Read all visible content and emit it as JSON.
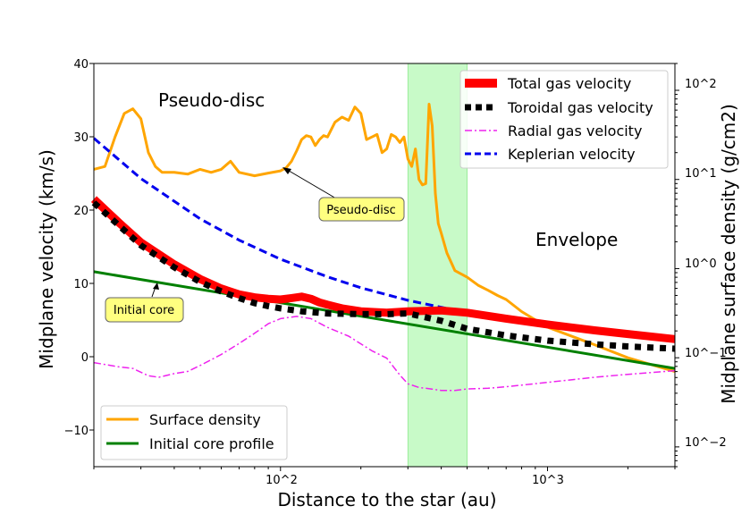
{
  "chart_data": {
    "type": "line",
    "xlabel": "Distance to the star (au)",
    "ylabel": "Midplane velocity (km/s)",
    "ylabel_right": "Midplane surface density (g/cm2)",
    "x_scale": "log",
    "xlim": [
      20,
      3000
    ],
    "ylim": [
      -15,
      40
    ],
    "y2_scale": "log",
    "y2lim": [
      0.006,
      200
    ],
    "x_ticks": [
      "10^2",
      "10^3"
    ],
    "y_ticks": [
      "40",
      "30",
      "20",
      "10",
      "0",
      "−10"
    ],
    "y2_ticks": [
      "10^2",
      "10^1",
      "10^0",
      "10^−1",
      "10^−2"
    ],
    "shaded_region": {
      "x": [
        300,
        500
      ],
      "color": "#c8fac8"
    },
    "region_labels": {
      "pseudo_disc": "Pseudo-disc",
      "envelope": "Envelope"
    },
    "annotations": [
      {
        "text": "Pseudo-disc",
        "target_x": 95,
        "target_y": 25.8,
        "label_x": 240,
        "label_y": 20.5
      },
      {
        "text": "Initial core",
        "target_x": 35,
        "target_y": 10.0,
        "label_x": 33,
        "label_y": 6.2
      }
    ],
    "legend_top": {
      "position": "top-right",
      "entries": [
        {
          "label": "Total gas velocity",
          "color": "#ff0000",
          "style": "thick"
        },
        {
          "label": "Toroidal gas velocity",
          "color": "#000000",
          "style": "dotted"
        },
        {
          "label": "Radial gas velocity",
          "color": "#ee22ee",
          "style": "dashdot"
        },
        {
          "label": "Keplerian velocity",
          "color": "#0000ee",
          "style": "dashed"
        }
      ]
    },
    "legend_bottom": {
      "position": "bottom-left",
      "entries": [
        {
          "label": "Surface density",
          "color": "#ffa500",
          "style": "solid"
        },
        {
          "label": "Initial core profile",
          "color": "#008000",
          "style": "solid"
        }
      ]
    },
    "series_left": [
      {
        "key": "total",
        "color": "#ff0000",
        "x": [
          20,
          25,
          30,
          40,
          50,
          60,
          70,
          80,
          90,
          100,
          110,
          120,
          130,
          140,
          150,
          170,
          200,
          250,
          300,
          400,
          500,
          700,
          1000,
          1500,
          2000,
          3000
        ],
        "y": [
          21.5,
          18.2,
          15.6,
          12.6,
          10.6,
          9.3,
          8.5,
          8.1,
          7.9,
          7.8,
          8.0,
          8.2,
          7.9,
          7.4,
          7.1,
          6.6,
          6.2,
          6.0,
          6.2,
          6.3,
          6.0,
          5.2,
          4.4,
          3.6,
          3.1,
          2.4
        ]
      },
      {
        "key": "toroidal",
        "color": "#000000",
        "x": [
          20,
          25,
          30,
          40,
          50,
          60,
          70,
          80,
          90,
          100,
          120,
          150,
          200,
          250,
          300,
          400,
          500,
          700,
          1000,
          1500,
          2000,
          3000
        ],
        "y": [
          21.0,
          17.8,
          15.2,
          12.2,
          10.2,
          8.9,
          8.0,
          7.3,
          6.9,
          6.6,
          6.2,
          5.9,
          5.8,
          5.8,
          5.9,
          4.9,
          3.8,
          2.9,
          2.2,
          1.7,
          1.4,
          1.1
        ]
      },
      {
        "key": "radial",
        "color": "#ee22ee",
        "x": [
          20,
          25,
          28,
          32,
          35,
          40,
          45,
          50,
          60,
          70,
          80,
          90,
          100,
          115,
          130,
          150,
          180,
          220,
          250,
          280,
          300,
          330,
          350,
          400,
          450,
          500,
          600,
          700,
          1000,
          1500,
          2000,
          3000
        ],
        "y": [
          -0.8,
          -1.4,
          -1.6,
          -2.6,
          -2.8,
          -2.3,
          -2.0,
          -1.2,
          0.3,
          1.8,
          3.2,
          4.5,
          5.2,
          5.5,
          5.2,
          4.0,
          2.8,
          0.8,
          -0.2,
          -2.5,
          -3.7,
          -4.2,
          -4.3,
          -4.6,
          -4.6,
          -4.4,
          -4.3,
          -4.1,
          -3.5,
          -2.8,
          -2.4,
          -1.9
        ]
      },
      {
        "key": "keplerian",
        "color": "#0000ee",
        "x": [
          20,
          30,
          50,
          70,
          100,
          150,
          200,
          300,
          500,
          1000,
          2000,
          3000
        ],
        "y": [
          29.8,
          24.3,
          18.8,
          15.9,
          13.3,
          10.9,
          9.4,
          7.7,
          6.0,
          4.2,
          3.0,
          2.4
        ]
      },
      {
        "key": "initial",
        "color": "#008000",
        "x": [
          20,
          3000
        ],
        "y": [
          11.6,
          -1.6
        ]
      }
    ],
    "series_right": [
      {
        "key": "surface",
        "color": "#ffa500",
        "x": [
          20,
          22,
          24,
          26,
          28,
          30,
          32,
          34,
          36,
          40,
          45,
          50,
          55,
          60,
          65,
          70,
          80,
          90,
          100,
          105,
          110,
          115,
          120,
          125,
          130,
          135,
          140,
          145,
          150,
          160,
          170,
          180,
          190,
          200,
          210,
          220,
          230,
          240,
          250,
          260,
          270,
          280,
          290,
          300,
          310,
          320,
          330,
          340,
          350,
          360,
          370,
          380,
          390,
          400,
          420,
          450,
          500,
          550,
          600,
          650,
          700,
          800,
          1000,
          1500,
          2000,
          3000
        ],
        "y2": [
          13,
          14,
          30,
          55,
          62,
          48,
          20,
          14,
          12,
          12,
          11.5,
          13,
          12,
          13,
          16,
          12,
          11,
          11.8,
          12.5,
          13.5,
          16,
          21,
          28,
          31,
          30,
          24,
          28,
          31,
          30,
          44,
          50,
          46,
          65,
          55,
          28,
          30,
          32,
          20,
          22,
          32,
          30,
          26,
          30,
          17,
          14,
          22,
          10,
          8.7,
          9,
          70,
          40,
          7,
          3.2,
          2.5,
          1.5,
          0.95,
          0.8,
          0.65,
          0.57,
          0.5,
          0.45,
          0.33,
          0.22,
          0.14,
          0.1,
          0.07
        ]
      }
    ]
  }
}
